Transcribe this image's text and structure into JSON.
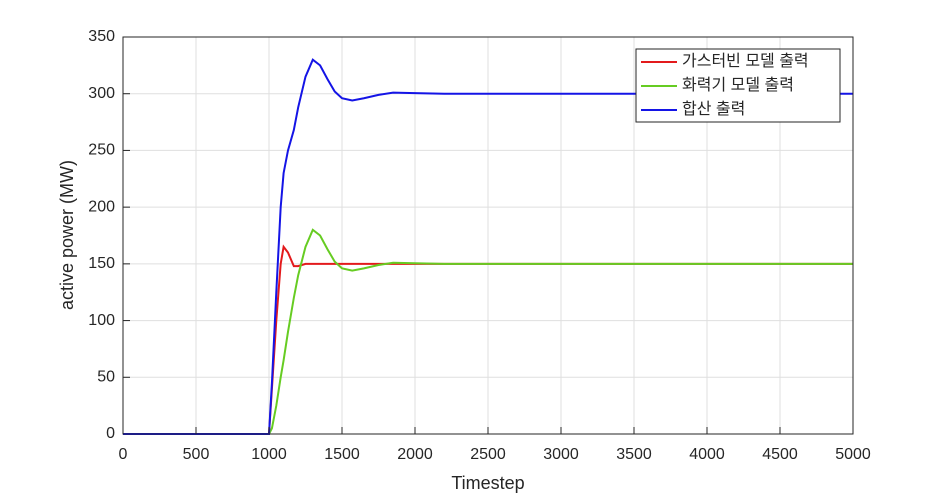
{
  "chart_data": {
    "type": "line",
    "x_label": "Timestep",
    "y_label": "active power (MW)",
    "x": [
      0,
      1000,
      1020,
      1050,
      1080,
      1100,
      1130,
      1170,
      1200,
      1250,
      1300,
      1350,
      1400,
      1450,
      1500,
      1570,
      1650,
      1750,
      1850,
      2000,
      2200,
      2500,
      5000
    ],
    "series": [
      {
        "name": "가스터빈 모델 출력",
        "color": "#e31a1c",
        "values": [
          0,
          0,
          40,
          100,
          150,
          165,
          160,
          148,
          148,
          150,
          150,
          150,
          150,
          150,
          150,
          150,
          150,
          150,
          150,
          150,
          150,
          150,
          150
        ]
      },
      {
        "name": "화력기 모델 출력",
        "color": "#66cc22",
        "values": [
          0,
          0,
          5,
          25,
          50,
          65,
          90,
          120,
          140,
          165,
          180,
          175,
          163,
          152,
          146,
          144,
          146,
          149,
          151,
          150.5,
          150,
          150,
          150
        ]
      },
      {
        "name": "합산 출력",
        "color": "#1414e6",
        "values": [
          0,
          0,
          45,
          125,
          200,
          230,
          250,
          268,
          288,
          315,
          330,
          325,
          313,
          302,
          296,
          294,
          296,
          299,
          301,
          300.5,
          300,
          300,
          300
        ]
      }
    ],
    "xlim": [
      0,
      5000
    ],
    "xticks": [
      0,
      500,
      1000,
      1500,
      2000,
      2500,
      3000,
      3500,
      4000,
      4500,
      5000
    ],
    "ylim": [
      0,
      350
    ],
    "yticks": [
      0,
      50,
      100,
      150,
      200,
      250,
      300,
      350
    ],
    "grid": true,
    "legend": "top-right"
  }
}
